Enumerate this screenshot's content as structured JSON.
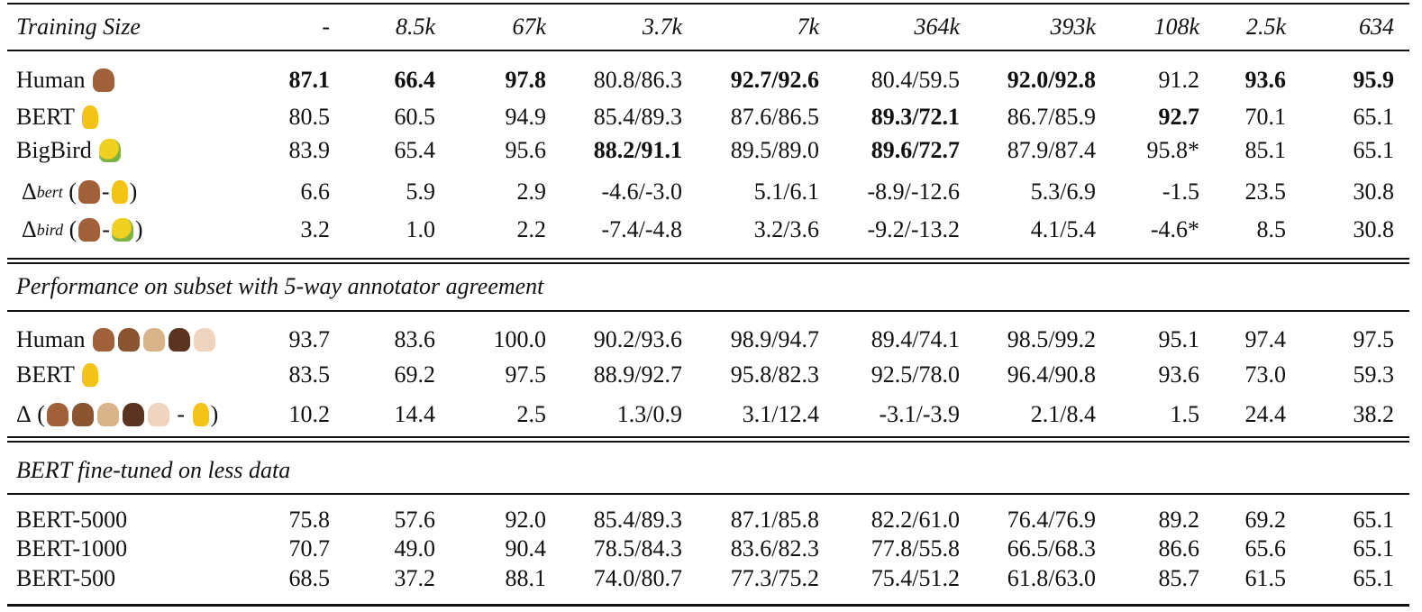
{
  "header": {
    "label": "Training Size",
    "sizes": [
      "-",
      "8.5k",
      "67k",
      "3.7k",
      "7k",
      "364k",
      "393k",
      "108k",
      "2.5k",
      "634"
    ]
  },
  "main": {
    "rows": [
      {
        "label": "Human",
        "values": [
          "87.1",
          "66.4",
          "97.8",
          "80.8/86.3",
          "92.7/92.6",
          "80.4/59.5",
          "92.0/92.8",
          "91.2",
          "93.6",
          "95.9"
        ],
        "bold": [
          0,
          1,
          2,
          4,
          6,
          8,
          9
        ]
      },
      {
        "label": "BERT",
        "values": [
          "80.5",
          "60.5",
          "94.9",
          "85.4/89.3",
          "87.6/86.5",
          "89.3/72.1",
          "86.7/85.9",
          "92.7",
          "70.1",
          "65.1"
        ],
        "bold": [
          5,
          7
        ]
      },
      {
        "label": "BigBird",
        "values": [
          "83.9",
          "65.4",
          "95.6",
          "88.2/91.1",
          "89.5/89.0",
          "89.6/72.7",
          "87.9/87.4",
          "95.8*",
          "85.1",
          "65.1"
        ],
        "bold": [
          3,
          5
        ]
      },
      {
        "label": "Δ",
        "subscript": "bert",
        "open": "(",
        "minus": "-",
        "close": ")",
        "values": [
          "6.6",
          "5.9",
          "2.9",
          "-4.6/-3.0",
          "5.1/6.1",
          "-8.9/-12.6",
          "5.3/6.9",
          "-1.5",
          "23.5",
          "30.8"
        ]
      },
      {
        "label": "Δ",
        "subscript": "bird",
        "open": "(",
        "minus": "-",
        "close": ")",
        "values": [
          "3.2",
          "1.0",
          "2.2",
          "-7.4/-4.8",
          "3.2/3.6",
          "-9.2/-13.2",
          "4.1/5.4",
          "-4.6*",
          "8.5",
          "30.8"
        ]
      }
    ]
  },
  "agreement": {
    "title": "Performance on subset with 5-way annotator agreement",
    "rows": [
      {
        "label": "Human",
        "values": [
          "93.7",
          "83.6",
          "100.0",
          "90.2/93.6",
          "98.9/94.7",
          "89.4/74.1",
          "98.5/99.2",
          "95.1",
          "97.4",
          "97.5"
        ]
      },
      {
        "label": "BERT",
        "values": [
          "83.5",
          "69.2",
          "97.5",
          "88.9/92.7",
          "95.8/82.3",
          "92.5/78.0",
          "96.4/90.8",
          "93.6",
          "73.0",
          "59.3"
        ]
      },
      {
        "label": "Δ",
        "open": "(",
        "minus": "-",
        "close": ")",
        "values": [
          "10.2",
          "14.4",
          "2.5",
          "1.3/0.9",
          "3.1/12.4",
          "-3.1/-3.9",
          "2.1/8.4",
          "1.5",
          "24.4",
          "38.2"
        ]
      }
    ]
  },
  "less_data": {
    "title": "BERT fine-tuned on less data",
    "rows": [
      {
        "label": "BERT-5000",
        "values": [
          "75.8",
          "57.6",
          "92.0",
          "85.4/89.3",
          "87.1/85.8",
          "82.2/61.0",
          "76.4/76.9",
          "89.2",
          "69.2",
          "65.1"
        ]
      },
      {
        "label": "BERT-1000",
        "values": [
          "70.7",
          "49.0",
          "90.4",
          "78.5/84.3",
          "83.6/82.3",
          "77.8/55.8",
          "66.5/68.3",
          "86.6",
          "65.6",
          "65.1"
        ]
      },
      {
        "label": "BERT-500",
        "values": [
          "68.5",
          "37.2",
          "88.1",
          "74.0/80.7",
          "77.3/75.2",
          "75.4/51.2",
          "61.8/63.0",
          "85.7",
          "61.5",
          "65.1"
        ]
      }
    ]
  }
}
